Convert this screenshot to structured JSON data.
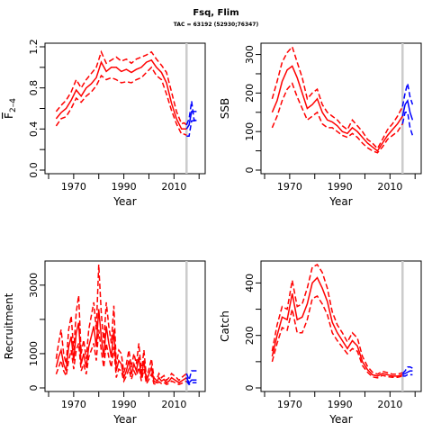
{
  "figure": {
    "title": "Fsq, Flim",
    "subtitle": "TAC = 63192 (52930;76347)"
  },
  "colors": {
    "historic": "#ff0000",
    "forecast": "#0000ff",
    "vline": "#cccccc",
    "axis": "#000000"
  },
  "chart_data": [
    {
      "type": "line",
      "ylabel_main": "F",
      "ylabel_sub": "2–4",
      "ylabel": "",
      "xlabel": "Year",
      "xlim": [
        1960,
        2021
      ],
      "ylim": [
        0,
        1.2
      ],
      "xticks": [
        1970,
        1990,
        2010
      ],
      "yticks": [
        "0.0",
        "0.4",
        "0.8",
        "1.2"
      ],
      "ytick_values": [
        0,
        0.4,
        0.8,
        1.2
      ],
      "ytick_minor": [
        0.2,
        0.6,
        1.0
      ],
      "vline_year": 2015,
      "historic": {
        "years": [
          1963,
          1965,
          1967,
          1969,
          1971,
          1973,
          1975,
          1977,
          1979,
          1981,
          1983,
          1985,
          1987,
          1989,
          1991,
          1993,
          1995,
          1997,
          1999,
          2001,
          2003,
          2005,
          2007,
          2009,
          2011,
          2013,
          2014,
          2015
        ],
        "median": [
          0.5,
          0.56,
          0.6,
          0.68,
          0.78,
          0.72,
          0.8,
          0.84,
          0.9,
          1.05,
          0.96,
          1.0,
          1.0,
          0.96,
          0.98,
          0.95,
          0.98,
          1.0,
          1.05,
          1.07,
          1.0,
          0.95,
          0.85,
          0.65,
          0.5,
          0.4,
          0.4,
          0.4
        ],
        "lower": [
          0.43,
          0.5,
          0.52,
          0.6,
          0.7,
          0.66,
          0.72,
          0.76,
          0.82,
          0.92,
          0.88,
          0.9,
          0.88,
          0.85,
          0.86,
          0.85,
          0.88,
          0.9,
          0.95,
          1.0,
          0.92,
          0.88,
          0.74,
          0.58,
          0.45,
          0.35,
          0.35,
          0.34
        ],
        "upper": [
          0.57,
          0.63,
          0.68,
          0.76,
          0.88,
          0.8,
          0.88,
          0.94,
          1.0,
          1.15,
          1.04,
          1.07,
          1.1,
          1.06,
          1.08,
          1.04,
          1.08,
          1.1,
          1.12,
          1.15,
          1.08,
          1.02,
          0.95,
          0.76,
          0.57,
          0.45,
          0.46,
          0.44
        ]
      },
      "forecast": {
        "years": [
          2015,
          2016,
          2017,
          2018,
          2019
        ],
        "median": [
          0.4,
          0.44,
          0.57,
          0.57,
          0.57
        ],
        "lower": [
          0.33,
          0.33,
          0.48,
          0.48,
          0.48
        ],
        "upper": [
          0.44,
          0.5,
          0.67,
          0.49,
          0.48
        ]
      }
    },
    {
      "type": "line",
      "ylabel": "SSB",
      "xlabel": "Year",
      "xlim": [
        1960,
        2021
      ],
      "ylim": [
        0,
        320
      ],
      "xticks": [
        1970,
        1990,
        2010
      ],
      "yticks": [
        "0",
        "100",
        "200",
        "300"
      ],
      "ytick_values": [
        0,
        100,
        200,
        300
      ],
      "ytick_minor": [
        50,
        150,
        250
      ],
      "vline_year": 2015,
      "historic": {
        "years": [
          1963,
          1965,
          1967,
          1969,
          1971,
          1973,
          1975,
          1977,
          1979,
          1981,
          1983,
          1985,
          1987,
          1989,
          1991,
          1993,
          1995,
          1997,
          1999,
          2001,
          2003,
          2005,
          2007,
          2009,
          2011,
          2013,
          2015
        ],
        "median": [
          150,
          180,
          230,
          260,
          270,
          240,
          200,
          160,
          170,
          185,
          150,
          130,
          125,
          115,
          100,
          95,
          110,
          100,
          85,
          70,
          60,
          50,
          70,
          90,
          105,
          120,
          140
        ],
        "lower": [
          110,
          140,
          180,
          210,
          225,
          190,
          160,
          130,
          140,
          150,
          120,
          110,
          110,
          100,
          90,
          85,
          95,
          85,
          70,
          58,
          50,
          45,
          60,
          80,
          90,
          100,
          120
        ],
        "upper": [
          185,
          230,
          280,
          305,
          320,
          280,
          240,
          185,
          200,
          210,
          170,
          150,
          140,
          130,
          115,
          105,
          130,
          115,
          100,
          80,
          70,
          56,
          80,
          105,
          120,
          140,
          165
        ]
      },
      "forecast": {
        "years": [
          2015,
          2016,
          2017,
          2018,
          2019
        ],
        "median": [
          140,
          170,
          180,
          150,
          130
        ],
        "lower": [
          120,
          150,
          150,
          110,
          90
        ],
        "upper": [
          165,
          200,
          225,
          190,
          170
        ]
      }
    },
    {
      "type": "line",
      "ylabel": "Recruitment",
      "xlabel": "Year",
      "xlim": [
        1960,
        2021
      ],
      "ylim": [
        0,
        3600
      ],
      "xticks": [
        1970,
        1990,
        2010
      ],
      "yticks": [
        "0",
        "1000",
        "3000"
      ],
      "ytick_values": [
        0,
        1000,
        3000
      ],
      "ytick_minor": [
        2000
      ],
      "vline_year": 2015,
      "historic": {
        "years": [
          1963,
          1964,
          1965,
          1966,
          1967,
          1968,
          1969,
          1970,
          1971,
          1972,
          1973,
          1974,
          1975,
          1976,
          1977,
          1978,
          1979,
          1980,
          1981,
          1982,
          1983,
          1984,
          1985,
          1986,
          1987,
          1988,
          1989,
          1990,
          1991,
          1992,
          1993,
          1994,
          1995,
          1996,
          1997,
          1998,
          1999,
          2000,
          2001,
          2002,
          2003,
          2004,
          2005,
          2006,
          2007,
          2008,
          2009,
          2010,
          2011,
          2012,
          2013,
          2014,
          2015
        ],
        "median": [
          600,
          900,
          1100,
          700,
          500,
          1200,
          1500,
          800,
          1600,
          1900,
          700,
          1000,
          600,
          1200,
          1500,
          1800,
          1200,
          2300,
          1500,
          900,
          1800,
          1300,
          900,
          1700,
          500,
          800,
          700,
          300,
          500,
          800,
          400,
          700,
          500,
          900,
          300,
          800,
          200,
          400,
          600,
          200,
          150,
          300,
          200,
          250,
          150,
          200,
          300,
          250,
          200,
          150,
          200,
          250,
          300
        ],
        "lower": [
          400,
          600,
          800,
          500,
          350,
          800,
          1100,
          550,
          1100,
          1300,
          500,
          700,
          400,
          900,
          1100,
          1300,
          800,
          1700,
          1100,
          600,
          1300,
          900,
          600,
          1200,
          300,
          550,
          500,
          200,
          350,
          550,
          250,
          500,
          350,
          600,
          200,
          550,
          120,
          250,
          400,
          120,
          100,
          180,
          130,
          160,
          100,
          130,
          200,
          170,
          130,
          100,
          130,
          170,
          200
        ],
        "upper": [
          850,
          1300,
          1700,
          1000,
          700,
          1700,
          2100,
          1100,
          2200,
          2700,
          1000,
          1400,
          850,
          1700,
          2100,
          2500,
          1700,
          3600,
          2200,
          1300,
          2500,
          1800,
          1300,
          2400,
          700,
          1100,
          1000,
          450,
          700,
          1100,
          600,
          1000,
          700,
          1300,
          450,
          1100,
          300,
          550,
          850,
          300,
          220,
          420,
          300,
          360,
          220,
          300,
          420,
          360,
          300,
          220,
          300,
          360,
          420
        ]
      },
      "forecast": {
        "years": [
          2015,
          2016,
          2017,
          2018,
          2019
        ],
        "median": [
          300,
          150,
          230,
          230,
          230
        ],
        "lower": [
          200,
          100,
          150,
          150,
          150
        ],
        "upper": [
          420,
          230,
          500,
          500,
          500
        ]
      }
    },
    {
      "type": "line",
      "ylabel": "Catch",
      "xlabel": "Year",
      "xlim": [
        1960,
        2021
      ],
      "ylim": [
        0,
        470
      ],
      "xticks": [
        1970,
        1990,
        2010
      ],
      "yticks": [
        "0",
        "200",
        "400"
      ],
      "ytick_values": [
        0,
        200,
        400
      ],
      "ytick_minor": [
        100,
        300
      ],
      "vline_year": 2015,
      "historic": {
        "years": [
          1963,
          1965,
          1967,
          1969,
          1971,
          1973,
          1975,
          1977,
          1979,
          1981,
          1983,
          1985,
          1987,
          1989,
          1991,
          1993,
          1995,
          1997,
          1999,
          2001,
          2003,
          2005,
          2007,
          2009,
          2011,
          2013,
          2015
        ],
        "median": [
          120,
          200,
          270,
          260,
          360,
          260,
          270,
          320,
          400,
          420,
          380,
          330,
          250,
          210,
          180,
          150,
          180,
          160,
          100,
          70,
          50,
          45,
          55,
          50,
          45,
          45,
          50
        ],
        "lower": [
          100,
          170,
          230,
          220,
          300,
          210,
          210,
          260,
          340,
          350,
          320,
          280,
          210,
          180,
          155,
          130,
          150,
          140,
          85,
          60,
          42,
          38,
          48,
          43,
          40,
          40,
          45
        ],
        "upper": [
          140,
          240,
          310,
          300,
          410,
          310,
          320,
          380,
          460,
          470,
          440,
          380,
          290,
          240,
          210,
          175,
          210,
          190,
          120,
          82,
          60,
          52,
          63,
          58,
          52,
          52,
          58
        ]
      },
      "forecast": {
        "years": [
          2015,
          2016,
          2017,
          2018,
          2019
        ],
        "median": [
          50,
          55,
          60,
          65,
          65
        ],
        "lower": [
          45,
          45,
          50,
          50,
          50
        ],
        "upper": [
          55,
          65,
          80,
          80,
          75
        ]
      }
    }
  ]
}
